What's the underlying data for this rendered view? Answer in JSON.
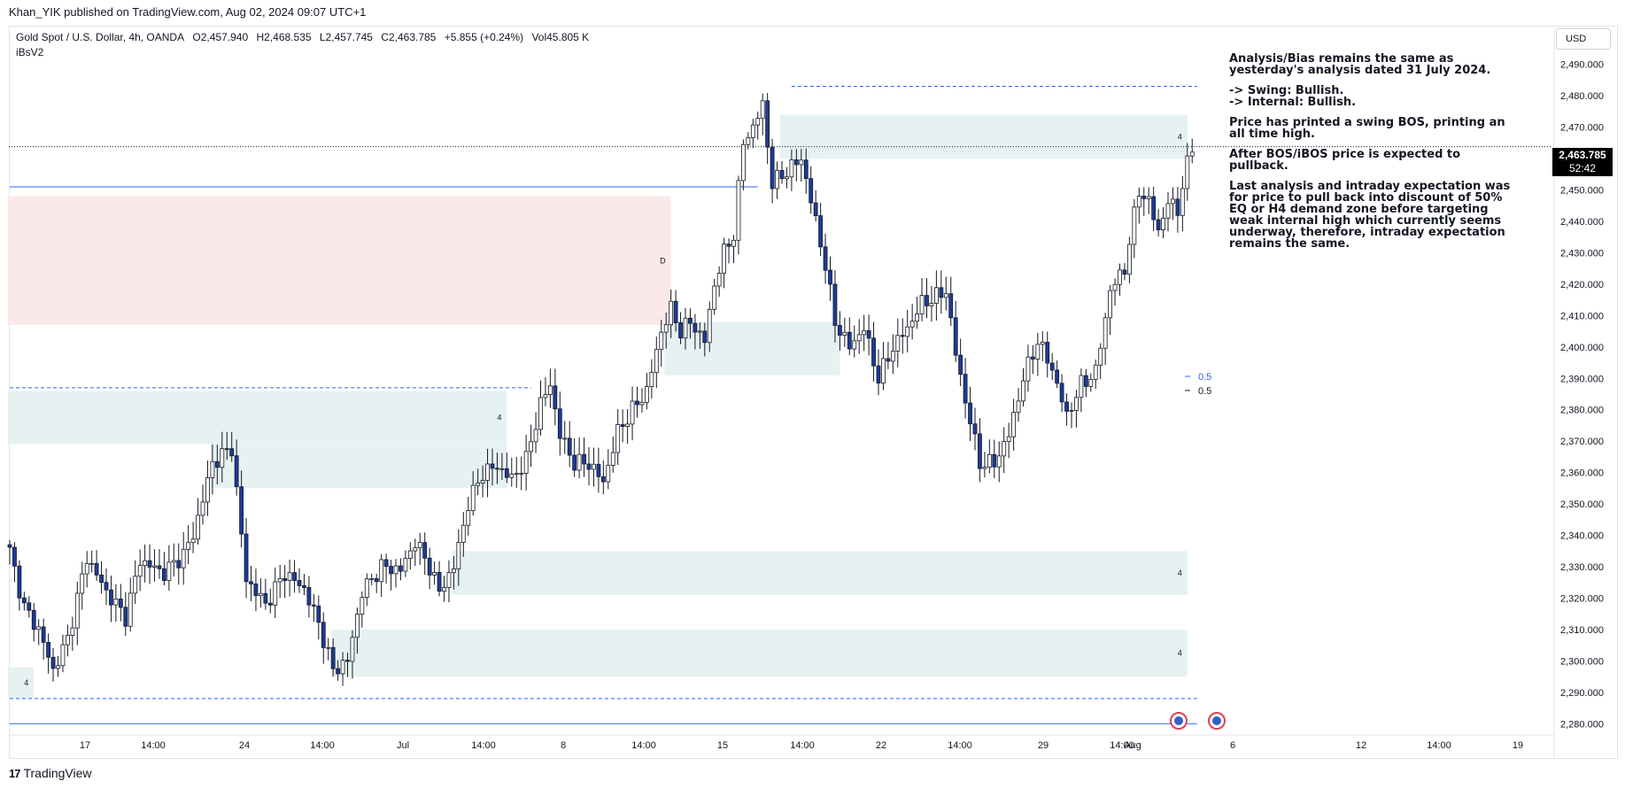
{
  "publisher_line": "Khan_YIK published on TradingView.com, Aug 02, 2024 09:07 UTC+1",
  "symbol": {
    "name": "Gold Spot / U.S. Dollar, 4h, OANDA",
    "open": "O2,457.940",
    "high": "H2,468.535",
    "low": "L2,457.745",
    "close": "C2,463.785",
    "change": "+5.855 (+0.24%)",
    "volume": "Vol45.805 K"
  },
  "indicator": "iBsV2",
  "currency_button": "USD",
  "last_price": {
    "value": "2,463.785",
    "countdown": "52:42",
    "price": 2463.785
  },
  "footer_logo": "TradingView",
  "analysis_paragraphs": [
    "Analysis/Bias remains the same as yesterday's analysis dated 31 July 2024.",
    "-> Swing:  Bullish.\n-> Internal:  Bullish.",
    "Price has printed a swing BOS, printing an all time high.",
    "After BOS/iBOS price is expected to pullback.",
    "Last analysis and intraday expectation was for price to pull back into discount of 50% EQ or H4 demand zone before targeting weak internal high which currently seems underway, therefore, intraday expectation remains the same."
  ],
  "colors": {
    "bull_body": "#ffffff",
    "bear_body": "#1e3a9a",
    "candle_outline": "#131722",
    "demand_zone": "#e6f2f2",
    "supply_zone": "#fbe9e9",
    "dashed_line": "#2962ff",
    "solid_line": "#2962ff"
  },
  "chart_data": {
    "type": "candlestick",
    "title": "Gold Spot / U.S. Dollar, 4h, OANDA",
    "ylim": [
      2275,
      2495
    ],
    "y_ticks": [
      "2,490.000",
      "2,480.000",
      "2,470.000",
      "2,460.000",
      "2,450.000",
      "2,440.000",
      "2,430.000",
      "2,420.000",
      "2,410.000",
      "2,400.000",
      "2,390.000",
      "2,380.000",
      "2,370.000",
      "2,360.000",
      "2,350.000",
      "2,340.000",
      "2,330.000",
      "2,320.000",
      "2,310.000",
      "2,300.000",
      "2,290.000",
      "2,280.000"
    ],
    "x_ticks": [
      "17",
      "14:00",
      "24",
      "14:00",
      "Jul",
      "14:00",
      "8",
      "14:00",
      "15",
      "14:00",
      "22",
      "14:00",
      "29",
      "14:00",
      "Aug",
      "6",
      "12",
      "14:00",
      "19"
    ],
    "grid": false,
    "candle_anchors": [
      [
        0,
        2335
      ],
      [
        3,
        2317
      ],
      [
        6,
        2310
      ],
      [
        9,
        2297
      ],
      [
        12,
        2307
      ],
      [
        16,
        2333
      ],
      [
        20,
        2322
      ],
      [
        24,
        2314
      ],
      [
        27,
        2332
      ],
      [
        32,
        2328
      ],
      [
        36,
        2334
      ],
      [
        38,
        2340
      ],
      [
        42,
        2363
      ],
      [
        46,
        2368
      ],
      [
        49,
        2326
      ],
      [
        53,
        2318
      ],
      [
        57,
        2328
      ],
      [
        61,
        2323
      ],
      [
        64,
        2312
      ],
      [
        67,
        2297
      ],
      [
        70,
        2300
      ],
      [
        73,
        2322
      ],
      [
        77,
        2330
      ],
      [
        81,
        2329
      ],
      [
        84,
        2338
      ],
      [
        87,
        2330
      ],
      [
        89,
        2322
      ],
      [
        92,
        2330
      ],
      [
        95,
        2350
      ],
      [
        98,
        2360
      ],
      [
        101,
        2362
      ],
      [
        104,
        2358
      ],
      [
        107,
        2364
      ],
      [
        110,
        2382
      ],
      [
        112,
        2388
      ],
      [
        114,
        2372
      ],
      [
        117,
        2363
      ],
      [
        120,
        2363
      ],
      [
        123,
        2357
      ],
      [
        126,
        2373
      ],
      [
        129,
        2380
      ],
      [
        132,
        2386
      ],
      [
        135,
        2405
      ],
      [
        137,
        2412
      ],
      [
        139,
        2405
      ],
      [
        141,
        2408
      ],
      [
        144,
        2402
      ],
      [
        146,
        2420
      ],
      [
        148,
        2430
      ],
      [
        150,
        2436
      ],
      [
        152,
        2465
      ],
      [
        154,
        2470
      ],
      [
        156,
        2477
      ],
      [
        158,
        2452
      ],
      [
        161,
        2456
      ],
      [
        164,
        2460
      ],
      [
        167,
        2440
      ],
      [
        169,
        2426
      ],
      [
        171,
        2408
      ],
      [
        174,
        2400
      ],
      [
        177,
        2406
      ],
      [
        180,
        2390
      ],
      [
        183,
        2400
      ],
      [
        186,
        2406
      ],
      [
        189,
        2414
      ],
      [
        192,
        2416
      ],
      [
        194,
        2418
      ],
      [
        196,
        2398
      ],
      [
        198,
        2383
      ],
      [
        201,
        2363
      ],
      [
        204,
        2363
      ],
      [
        207,
        2372
      ],
      [
        210,
        2390
      ],
      [
        213,
        2402
      ],
      [
        216,
        2393
      ],
      [
        219,
        2378
      ],
      [
        222,
        2388
      ],
      [
        225,
        2392
      ],
      [
        228,
        2418
      ],
      [
        231,
        2425
      ],
      [
        234,
        2450
      ],
      [
        236,
        2446
      ],
      [
        238,
        2437
      ],
      [
        240,
        2446
      ],
      [
        242,
        2444
      ],
      [
        244,
        2458
      ],
      [
        245,
        2464
      ]
    ],
    "zones": [
      {
        "kind": "supply",
        "label": "D",
        "x0": 0,
        "x1": 137,
        "y0": 2407,
        "y1": 2448
      },
      {
        "kind": "demand",
        "label": "4",
        "x0": 0,
        "x1": 103,
        "y0": 2369,
        "y1": 2386
      },
      {
        "kind": "demand",
        "label": "",
        "x0": 42,
        "x1": 103,
        "y0": 2355,
        "y1": 2369
      },
      {
        "kind": "demand",
        "label": "4",
        "x0": 92,
        "x1": 244,
        "y0": 2321,
        "y1": 2335
      },
      {
        "kind": "demand",
        "label": "4",
        "x0": 67,
        "x1": 244,
        "y0": 2295,
        "y1": 2310
      },
      {
        "kind": "demand",
        "label": "4",
        "x0": 0,
        "x1": 5,
        "y0": 2288,
        "y1": 2298
      },
      {
        "kind": "demand",
        "label": "",
        "x0": 136,
        "x1": 172,
        "y0": 2391,
        "y1": 2408
      },
      {
        "kind": "demand",
        "label": "",
        "x0": 169,
        "x1": 244,
        "y0": 2460,
        "y1": 2473
      },
      {
        "kind": "demand",
        "label": "4",
        "x0": 160,
        "x1": 244,
        "y0": 2460,
        "y1": 2474
      }
    ],
    "levels": [
      {
        "style": "dashed",
        "price": 2483,
        "x0": 162,
        "x1": 246
      },
      {
        "style": "dashed",
        "price": 2387,
        "x0": 0,
        "x1": 108
      },
      {
        "style": "dashed",
        "price": 2288,
        "x0": 0,
        "x1": 246
      },
      {
        "style": "solid",
        "price": 2451,
        "x0": 0,
        "x1": 155
      },
      {
        "style": "solid",
        "price": 2280,
        "x0": 0,
        "x1": 246
      }
    ],
    "eq_labels": [
      {
        "text": "0.5",
        "price": 2389.5,
        "color": "#2962ff"
      },
      {
        "text": "0.5",
        "price": 2385,
        "color": "#131722"
      }
    ],
    "zone_small_labels": [
      "4",
      "4",
      "4",
      "4",
      "4",
      "D"
    ]
  }
}
